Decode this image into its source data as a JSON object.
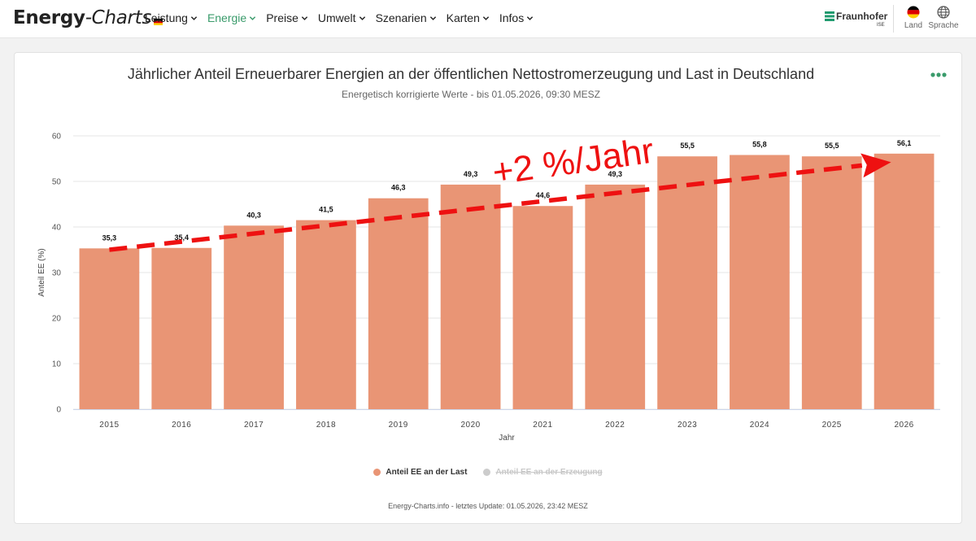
{
  "app": {
    "logo_bold": "Energy",
    "logo_italic": "-Charts"
  },
  "nav": {
    "items": [
      "Leistung",
      "Energie",
      "Preise",
      "Umwelt",
      "Szenarien",
      "Karten",
      "Infos"
    ],
    "active": "Energie"
  },
  "brand": {
    "name": "Fraunhofer",
    "sub": "ISE",
    "color": "#1f9a6e"
  },
  "toolbar": {
    "land_label": "Land",
    "language_label": "Sprache"
  },
  "colors": {
    "bar": "#e99575",
    "accent": "#3a9b6b",
    "hidden_legend": "#cccccc",
    "trend": "#ee1111"
  },
  "chart_data": {
    "type": "bar",
    "title": "Jährlicher Anteil Erneuerbarer Energien an der öffentlichen Nettostromerzeugung und Last in Deutschland",
    "subtitle": "Energetisch korrigierte Werte - bis 01.05.2026, 09:30 MESZ",
    "xlabel": "Jahr",
    "ylabel": "Anteil EE (%)",
    "ylim": [
      0,
      60
    ],
    "yticks": [
      0,
      10,
      20,
      30,
      40,
      50,
      60
    ],
    "categories": [
      "2015",
      "2016",
      "2017",
      "2018",
      "2019",
      "2020",
      "2021",
      "2022",
      "2023",
      "2024",
      "2025",
      "2026"
    ],
    "series": [
      {
        "name": "Anteil EE an der Last",
        "values": [
          35.3,
          35.4,
          40.3,
          41.5,
          46.3,
          49.3,
          44.6,
          49.3,
          55.5,
          55.8,
          55.5,
          56.1
        ],
        "labels": [
          "35,3",
          "35,4",
          "40,3",
          "41,5",
          "46,3",
          "49,3",
          "44,6",
          "49,3",
          "55,5",
          "55,8",
          "55,5",
          "56,1"
        ],
        "visible": true
      },
      {
        "name": "Anteil EE an der Erzeugung",
        "visible": false
      }
    ],
    "grid": true,
    "legend_position": "bottom",
    "annotation": {
      "text": "+2 %/Jahr",
      "trend_start": {
        "x": "2015",
        "y": 35
      },
      "trend_end": {
        "x": "2026",
        "y": 56
      }
    },
    "credits": "Energy-Charts.info - letztes Update: 01.05.2026, 23:42 MESZ"
  }
}
